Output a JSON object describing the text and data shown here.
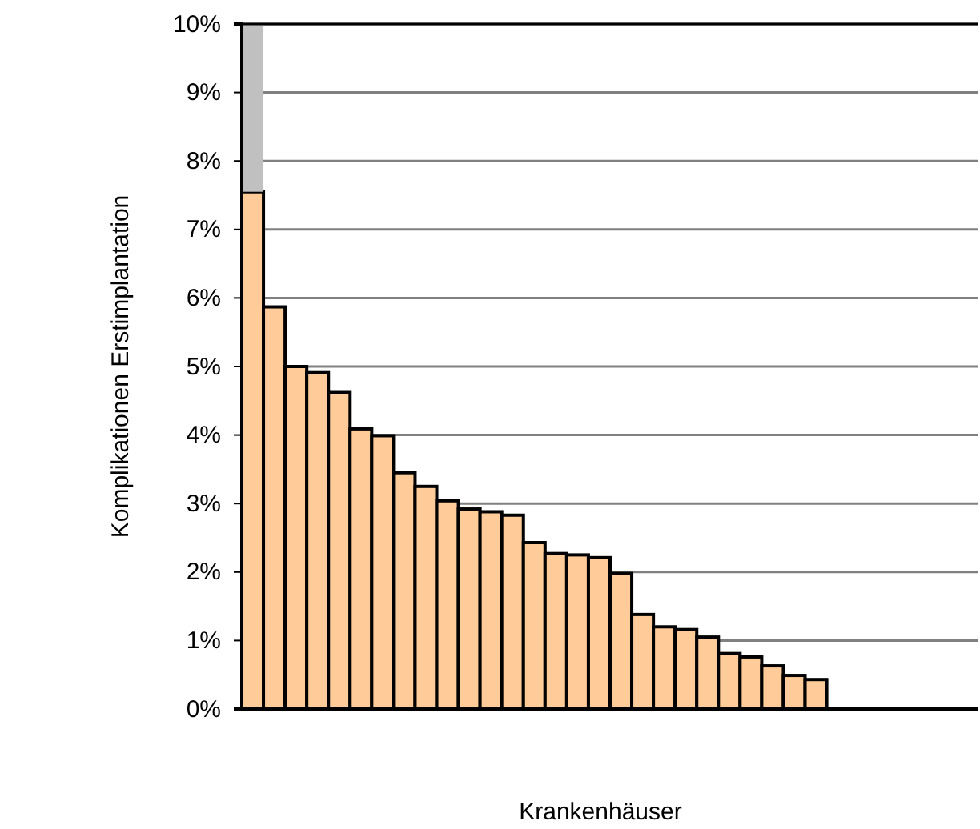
{
  "chart_data": {
    "type": "bar",
    "stacked": true,
    "xlabel": "Krankenhäuser",
    "ylabel": "Komplikationen Erstimplantation",
    "categories": [
      null,
      null,
      null,
      null,
      null,
      null,
      null,
      null,
      null,
      null,
      null,
      null,
      null,
      null,
      null,
      null,
      null,
      null,
      null,
      null,
      null,
      null,
      null,
      null,
      null,
      null,
      null,
      null,
      null,
      null,
      null,
      null,
      null,
      null
    ],
    "series": [
      {
        "color": "#ffcc99",
        "values": [
          7.55,
          5.87,
          5.0,
          4.91,
          4.62,
          4.09,
          3.99,
          3.45,
          3.25,
          3.04,
          2.92,
          2.88,
          2.83,
          2.43,
          2.27,
          2.25,
          2.21,
          1.98,
          1.38,
          1.2,
          1.16,
          1.05,
          0.81,
          0.76,
          0.63,
          0.49,
          0.43,
          0,
          0,
          0,
          0,
          0,
          0,
          0
        ]
      },
      {
        "color": "#c0c0c0",
        "values": [
          2.45,
          0,
          0,
          0,
          0,
          0,
          0,
          0,
          0,
          0,
          0,
          0,
          0,
          0,
          0,
          0,
          0,
          0,
          0,
          0,
          0,
          0,
          0,
          0,
          0,
          0,
          0,
          0,
          0,
          0,
          0,
          0,
          0,
          0
        ]
      }
    ],
    "ylim": [
      0,
      10
    ],
    "yticks": [
      {
        "value": 0,
        "label": "0%"
      },
      {
        "value": 1,
        "label": "1%"
      },
      {
        "value": 2,
        "label": "2%"
      },
      {
        "value": 3,
        "label": "3%"
      },
      {
        "value": 4,
        "label": "4%"
      },
      {
        "value": 5,
        "label": "5%"
      },
      {
        "value": 6,
        "label": "6%"
      },
      {
        "value": 7,
        "label": "7%"
      },
      {
        "value": 8,
        "label": "8%"
      },
      {
        "value": 9,
        "label": "9%"
      },
      {
        "value": 10,
        "label": "10%"
      }
    ],
    "grid": "y",
    "tick_labels": "y"
  }
}
